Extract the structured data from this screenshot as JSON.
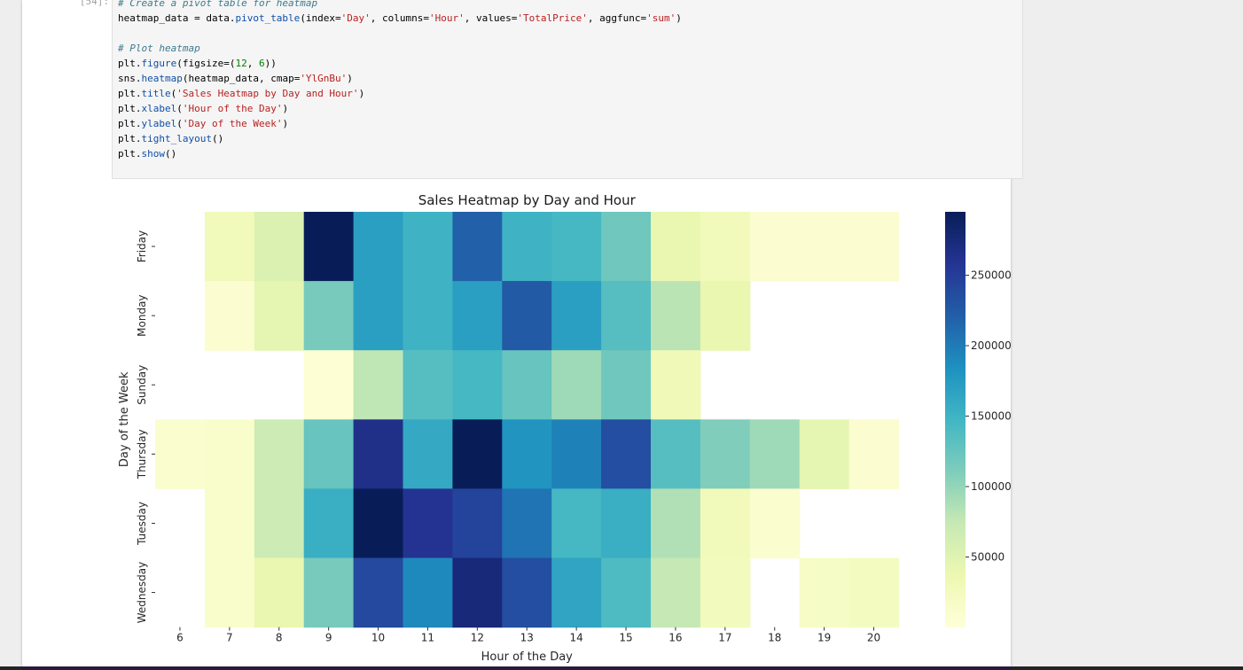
{
  "cell": {
    "prompt": "[54]:",
    "code_lines": [
      [
        {
          "t": "c",
          "v": "# Create a pivot table for heatmap"
        }
      ],
      [
        {
          "t": "o",
          "v": "heatmap_data = data."
        },
        {
          "t": "f",
          "v": "pivot_table"
        },
        {
          "t": "o",
          "v": "(index="
        },
        {
          "t": "s",
          "v": "'Day'"
        },
        {
          "t": "o",
          "v": ", columns="
        },
        {
          "t": "s",
          "v": "'Hour'"
        },
        {
          "t": "o",
          "v": ", values="
        },
        {
          "t": "s",
          "v": "'TotalPrice'"
        },
        {
          "t": "o",
          "v": ", aggfunc="
        },
        {
          "t": "s",
          "v": "'sum'"
        },
        {
          "t": "o",
          "v": ")"
        }
      ],
      [],
      [
        {
          "t": "c",
          "v": "# Plot heatmap"
        }
      ],
      [
        {
          "t": "o",
          "v": "plt."
        },
        {
          "t": "f",
          "v": "figure"
        },
        {
          "t": "o",
          "v": "(figsize=("
        },
        {
          "t": "n",
          "v": "12"
        },
        {
          "t": "o",
          "v": ", "
        },
        {
          "t": "n",
          "v": "6"
        },
        {
          "t": "o",
          "v": "))"
        }
      ],
      [
        {
          "t": "o",
          "v": "sns."
        },
        {
          "t": "f",
          "v": "heatmap"
        },
        {
          "t": "o",
          "v": "(heatmap_data, cmap="
        },
        {
          "t": "s",
          "v": "'YlGnBu'"
        },
        {
          "t": "o",
          "v": ")"
        }
      ],
      [
        {
          "t": "o",
          "v": "plt."
        },
        {
          "t": "f",
          "v": "title"
        },
        {
          "t": "o",
          "v": "("
        },
        {
          "t": "s",
          "v": "'Sales Heatmap by Day and Hour'"
        },
        {
          "t": "o",
          "v": ")"
        }
      ],
      [
        {
          "t": "o",
          "v": "plt."
        },
        {
          "t": "f",
          "v": "xlabel"
        },
        {
          "t": "o",
          "v": "("
        },
        {
          "t": "s",
          "v": "'Hour of the Day'"
        },
        {
          "t": "o",
          "v": ")"
        }
      ],
      [
        {
          "t": "o",
          "v": "plt."
        },
        {
          "t": "f",
          "v": "ylabel"
        },
        {
          "t": "o",
          "v": "("
        },
        {
          "t": "s",
          "v": "'Day of the Week'"
        },
        {
          "t": "o",
          "v": ")"
        }
      ],
      [
        {
          "t": "o",
          "v": "plt."
        },
        {
          "t": "f",
          "v": "tight_layout"
        },
        {
          "t": "o",
          "v": "()"
        }
      ],
      [
        {
          "t": "o",
          "v": "plt."
        },
        {
          "t": "f",
          "v": "show"
        },
        {
          "t": "o",
          "v": "()"
        }
      ]
    ]
  },
  "chart_data": {
    "type": "heatmap",
    "title": "Sales Heatmap by Day and Hour",
    "xlabel": "Hour of the Day",
    "ylabel": "Day of the Week",
    "colormap": "YlGnBu",
    "x_categories": [
      "6",
      "7",
      "8",
      "9",
      "10",
      "11",
      "12",
      "13",
      "14",
      "15",
      "16",
      "17",
      "18",
      "19",
      "20"
    ],
    "y_categories": [
      "Friday",
      "Monday",
      "Sunday",
      "Thursday",
      "Tuesday",
      "Wednesday"
    ],
    "values": [
      [
        null,
        28000,
        55000,
        295000,
        170000,
        150000,
        220000,
        150000,
        145000,
        120000,
        40000,
        28000,
        8000,
        8000,
        8000
      ],
      [
        null,
        8000,
        45000,
        115000,
        170000,
        150000,
        170000,
        225000,
        170000,
        135000,
        80000,
        40000,
        null,
        null,
        null
      ],
      [
        null,
        null,
        null,
        5000,
        78000,
        135000,
        145000,
        125000,
        95000,
        120000,
        30000,
        null,
        null,
        null,
        null
      ],
      [
        10000,
        12000,
        68000,
        125000,
        265000,
        160000,
        295000,
        180000,
        195000,
        235000,
        135000,
        110000,
        95000,
        45000,
        8000
      ],
      [
        null,
        12000,
        68000,
        155000,
        295000,
        260000,
        245000,
        205000,
        145000,
        155000,
        85000,
        28000,
        10000,
        null,
        null
      ],
      [
        null,
        12000,
        40000,
        115000,
        240000,
        190000,
        275000,
        235000,
        165000,
        140000,
        75000,
        25000,
        null,
        18000,
        22000
      ]
    ],
    "colorbar": {
      "range": [
        0,
        295000
      ],
      "ticks": [
        "50000",
        "100000",
        "150000",
        "200000",
        "250000"
      ],
      "tick_values": [
        50000,
        100000,
        150000,
        200000,
        250000
      ]
    },
    "grid": false
  }
}
